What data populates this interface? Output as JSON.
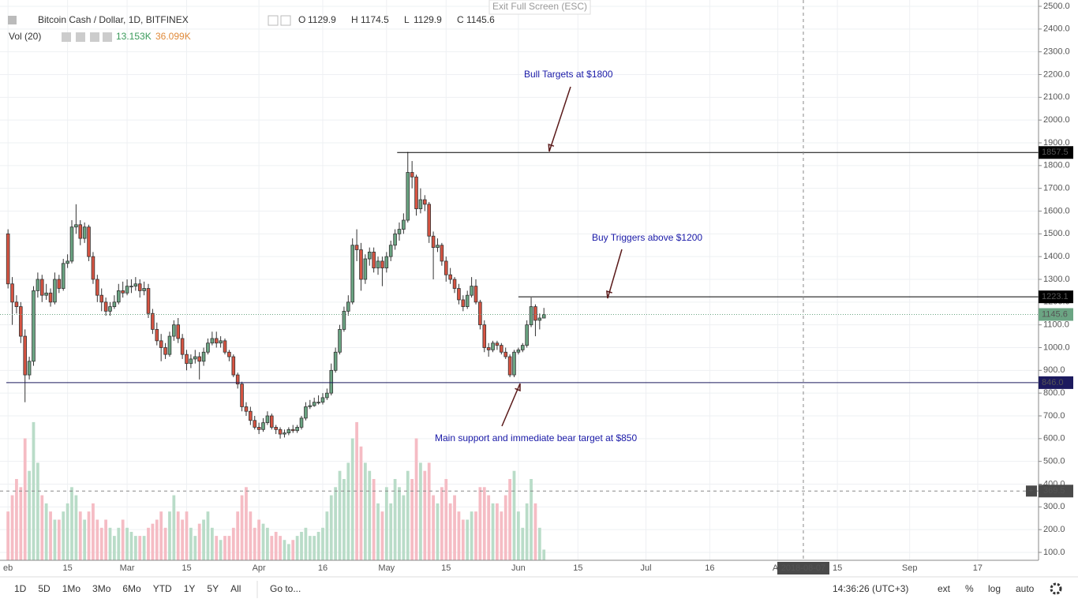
{
  "top_bar": {
    "exit": "Exit Full Screen (ESC)"
  },
  "chart_data": {
    "type": "candlestick",
    "title": "Bitcoin Cash / Dollar, 1D, BITFINEX",
    "ohlc_letters": [
      "O",
      "H",
      "L",
      "C"
    ],
    "volume_title": "Vol (20)",
    "volume_value": "13.153K",
    "volume_ma": "36.099K",
    "ohlc": [
      [
        1500,
        1520,
        1260,
        1280
      ],
      [
        1280,
        1310,
        1100,
        1200
      ],
      [
        1200,
        1230,
        1150,
        1180
      ],
      [
        1180,
        1200,
        1020,
        1050
      ],
      [
        1050,
        1080,
        760,
        880
      ],
      [
        880,
        960,
        860,
        940
      ],
      [
        940,
        1270,
        920,
        1250
      ],
      [
        1250,
        1330,
        1220,
        1300
      ],
      [
        1300,
        1320,
        1200,
        1230
      ],
      [
        1230,
        1280,
        1210,
        1240
      ],
      [
        1240,
        1260,
        1180,
        1200
      ],
      [
        1200,
        1330,
        1190,
        1300
      ],
      [
        1300,
        1320,
        1240,
        1260
      ],
      [
        1260,
        1390,
        1250,
        1370
      ],
      [
        1370,
        1410,
        1350,
        1380
      ],
      [
        1380,
        1560,
        1370,
        1530
      ],
      [
        1530,
        1630,
        1500,
        1540
      ],
      [
        1540,
        1560,
        1450,
        1480
      ],
      [
        1480,
        1550,
        1460,
        1530
      ],
      [
        1530,
        1540,
        1380,
        1400
      ],
      [
        1400,
        1420,
        1280,
        1300
      ],
      [
        1300,
        1320,
        1200,
        1230
      ],
      [
        1230,
        1260,
        1160,
        1200
      ],
      [
        1200,
        1220,
        1140,
        1160
      ],
      [
        1160,
        1200,
        1140,
        1180
      ],
      [
        1180,
        1230,
        1170,
        1200
      ],
      [
        1200,
        1280,
        1190,
        1250
      ],
      [
        1250,
        1290,
        1220,
        1240
      ],
      [
        1240,
        1300,
        1230,
        1270
      ],
      [
        1270,
        1300,
        1240,
        1270
      ],
      [
        1270,
        1310,
        1250,
        1280
      ],
      [
        1280,
        1300,
        1220,
        1250
      ],
      [
        1250,
        1290,
        1230,
        1260
      ],
      [
        1260,
        1280,
        1130,
        1150
      ],
      [
        1150,
        1170,
        1060,
        1080
      ],
      [
        1080,
        1110,
        1010,
        1030
      ],
      [
        1030,
        1060,
        940,
        1000
      ],
      [
        1000,
        1020,
        950,
        970
      ],
      [
        970,
        1070,
        960,
        1050
      ],
      [
        1050,
        1120,
        1030,
        1100
      ],
      [
        1100,
        1130,
        1020,
        1040
      ],
      [
        1040,
        1060,
        950,
        970
      ],
      [
        970,
        990,
        900,
        930
      ],
      [
        930,
        970,
        910,
        950
      ],
      [
        950,
        990,
        930,
        960
      ],
      [
        960,
        980,
        860,
        940
      ],
      [
        940,
        1000,
        920,
        980
      ],
      [
        980,
        1040,
        970,
        1020
      ],
      [
        1020,
        1070,
        1010,
        1040
      ],
      [
        1040,
        1070,
        1000,
        1020
      ],
      [
        1020,
        1050,
        1000,
        1030
      ],
      [
        1030,
        1040,
        970,
        980
      ],
      [
        980,
        990,
        940,
        960
      ],
      [
        960,
        970,
        870,
        880
      ],
      [
        880,
        890,
        820,
        840
      ],
      [
        840,
        850,
        720,
        740
      ],
      [
        740,
        760,
        700,
        720
      ],
      [
        720,
        740,
        660,
        680
      ],
      [
        680,
        700,
        640,
        650
      ],
      [
        650,
        670,
        620,
        640
      ],
      [
        640,
        690,
        630,
        670
      ],
      [
        670,
        720,
        660,
        700
      ],
      [
        700,
        710,
        640,
        650
      ],
      [
        650,
        660,
        620,
        640
      ],
      [
        640,
        650,
        600,
        620
      ],
      [
        620,
        640,
        605,
        625
      ],
      [
        625,
        650,
        615,
        640
      ],
      [
        640,
        660,
        625,
        635
      ],
      [
        635,
        660,
        625,
        650
      ],
      [
        650,
        700,
        640,
        690
      ],
      [
        690,
        760,
        680,
        740
      ],
      [
        740,
        770,
        730,
        745
      ],
      [
        745,
        780,
        740,
        760
      ],
      [
        760,
        790,
        750,
        760
      ],
      [
        760,
        800,
        750,
        780
      ],
      [
        780,
        820,
        770,
        800
      ],
      [
        800,
        930,
        790,
        900
      ],
      [
        900,
        1000,
        890,
        980
      ],
      [
        980,
        1100,
        970,
        1080
      ],
      [
        1080,
        1180,
        1070,
        1160
      ],
      [
        1160,
        1230,
        1140,
        1200
      ],
      [
        1200,
        1480,
        1190,
        1450
      ],
      [
        1450,
        1520,
        1380,
        1430
      ],
      [
        1430,
        1460,
        1250,
        1300
      ],
      [
        1300,
        1410,
        1280,
        1390
      ],
      [
        1390,
        1440,
        1360,
        1420
      ],
      [
        1420,
        1440,
        1330,
        1350
      ],
      [
        1350,
        1400,
        1320,
        1380
      ],
      [
        1380,
        1400,
        1270,
        1350
      ],
      [
        1350,
        1420,
        1330,
        1400
      ],
      [
        1400,
        1470,
        1380,
        1450
      ],
      [
        1450,
        1520,
        1430,
        1500
      ],
      [
        1500,
        1550,
        1470,
        1520
      ],
      [
        1520,
        1590,
        1500,
        1560
      ],
      [
        1560,
        1860,
        1550,
        1770
      ],
      [
        1770,
        1820,
        1700,
        1750
      ],
      [
        1750,
        1760,
        1580,
        1610
      ],
      [
        1610,
        1700,
        1590,
        1650
      ],
      [
        1650,
        1670,
        1600,
        1630
      ],
      [
        1630,
        1640,
        1460,
        1490
      ],
      [
        1490,
        1510,
        1300,
        1440
      ],
      [
        1440,
        1480,
        1420,
        1450
      ],
      [
        1450,
        1460,
        1360,
        1380
      ],
      [
        1380,
        1400,
        1290,
        1320
      ],
      [
        1320,
        1350,
        1280,
        1300
      ],
      [
        1300,
        1310,
        1240,
        1260
      ],
      [
        1260,
        1280,
        1190,
        1210
      ],
      [
        1210,
        1230,
        1160,
        1180
      ],
      [
        1180,
        1250,
        1170,
        1230
      ],
      [
        1230,
        1310,
        1220,
        1270
      ],
      [
        1270,
        1300,
        1190,
        1200
      ],
      [
        1200,
        1210,
        1080,
        1100
      ],
      [
        1100,
        1120,
        980,
        1000
      ],
      [
        1000,
        1020,
        960,
        990
      ],
      [
        990,
        1030,
        980,
        1020
      ],
      [
        1020,
        1030,
        990,
        1010
      ],
      [
        1010,
        1020,
        970,
        980
      ],
      [
        980,
        1000,
        950,
        960
      ],
      [
        960,
        970,
        870,
        880
      ],
      [
        880,
        990,
        870,
        980
      ],
      [
        980,
        1000,
        970,
        990
      ],
      [
        990,
        1020,
        980,
        1010
      ],
      [
        1010,
        1120,
        1000,
        1100
      ],
      [
        1100,
        1220,
        1090,
        1180
      ],
      [
        1180,
        1190,
        1050,
        1120
      ],
      [
        1120,
        1150,
        1080,
        1130
      ],
      [
        1129.9,
        1174.5,
        1129.9,
        1145.6
      ]
    ],
    "volume": [
      60,
      80,
      100,
      90,
      150,
      110,
      170,
      120,
      80,
      70,
      60,
      50,
      50,
      60,
      70,
      90,
      80,
      60,
      50,
      60,
      70,
      50,
      40,
      50,
      40,
      30,
      40,
      50,
      40,
      35,
      30,
      30,
      30,
      40,
      45,
      50,
      60,
      40,
      60,
      80,
      60,
      50,
      60,
      40,
      30,
      45,
      50,
      60,
      40,
      30,
      25,
      30,
      30,
      40,
      60,
      80,
      90,
      60,
      40,
      50,
      45,
      40,
      30,
      35,
      30,
      25,
      20,
      25,
      30,
      35,
      40,
      30,
      30,
      35,
      40,
      60,
      80,
      90,
      110,
      100,
      120,
      150,
      170,
      140,
      120,
      110,
      100,
      70,
      60,
      90,
      70,
      100,
      90,
      80,
      110,
      100,
      150,
      120,
      110,
      120,
      80,
      70,
      90,
      100,
      70,
      80,
      60,
      50,
      50,
      60,
      60,
      90,
      90,
      80,
      70,
      70,
      60,
      80,
      100,
      110,
      60,
      40,
      70,
      100,
      70,
      40,
      13.153
    ],
    "up_color": "#6ba583",
    "down_color": "#d75442",
    "vol_up_color": "#b9dcc8",
    "vol_down_color": "#f5bcc4",
    "xlim": [
      -0.4,
      242.3
    ],
    "ylim": [
      65.3,
      2527.7
    ],
    "vol_lim": [
      0,
      200
    ],
    "xticks": [
      {
        "value": 0,
        "label": "eb"
      },
      {
        "value": 14,
        "label": "15"
      },
      {
        "value": 28,
        "label": "Mar"
      },
      {
        "value": 42,
        "label": "15"
      },
      {
        "value": 59,
        "label": "Apr"
      },
      {
        "value": 74,
        "label": "16"
      },
      {
        "value": 89,
        "label": "May"
      },
      {
        "value": 103,
        "label": "15"
      },
      {
        "value": 120,
        "label": "Jun"
      },
      {
        "value": 134,
        "label": "15"
      },
      {
        "value": 150,
        "label": "Jul"
      },
      {
        "value": 165,
        "label": "16"
      },
      {
        "value": 181,
        "label": "Au"
      },
      {
        "value": 195,
        "label": "15"
      },
      {
        "value": 212,
        "label": "Sep"
      },
      {
        "value": 228,
        "label": "17"
      }
    ],
    "yticks": [
      {
        "value": 100,
        "label": "100.0"
      },
      {
        "value": 200,
        "label": "200.0"
      },
      {
        "value": 300,
        "label": "300.0"
      },
      {
        "value": 400,
        "label": "400.0"
      },
      {
        "value": 500,
        "label": "500.0"
      },
      {
        "value": 600,
        "label": "600.0"
      },
      {
        "value": 700,
        "label": "700.0"
      },
      {
        "value": 800,
        "label": "800.0"
      },
      {
        "value": 900,
        "label": "900.0"
      },
      {
        "value": 1000,
        "label": "1000.0"
      },
      {
        "value": 1100,
        "label": "1100.0"
      },
      {
        "value": 1200,
        "label": "1200.0"
      },
      {
        "value": 1300,
        "label": "1300.0"
      },
      {
        "value": 1400,
        "label": "1400.0"
      },
      {
        "value": 1500,
        "label": "1500.0"
      },
      {
        "value": 1600,
        "label": "1600.0"
      },
      {
        "value": 1700,
        "label": "1700.0"
      },
      {
        "value": 1800,
        "label": "1800.0"
      },
      {
        "value": 1900,
        "label": "1900.0"
      },
      {
        "value": 2000,
        "label": "2000.0"
      },
      {
        "value": 2100,
        "label": "2100.0"
      },
      {
        "value": 2200,
        "label": "2200.0"
      },
      {
        "value": 2300,
        "label": "2300.0"
      },
      {
        "value": 2400,
        "label": "2400.0"
      },
      {
        "value": 2500,
        "label": "2500.0"
      }
    ],
    "grid": true,
    "levels": [
      {
        "value": 1857.5,
        "color": "#000000"
      },
      {
        "value": 1223.1,
        "color": "#000000"
      },
      {
        "value": {
          "value": 846,
          "label": "846.0"
        },
        "color": "#1c1a5e"
      }
    ],
    "crosshair": {
      "x": 187,
      "x_label": "2018-08-07",
      "y": 369.5
    },
    "annotations": [
      "Bull Targets at $1800",
      "Buy Triggers above $1200",
      "Main support and immediate bear target at $850"
    ]
  },
  "toolbar": {
    "ranges": [
      "1D",
      "5D",
      "1Mo",
      "3Mo",
      "6Mo",
      "YTD",
      "1Y",
      "5Y",
      "All"
    ],
    "goto": "Go to...",
    "time": "14:36:26 (UTC+3)",
    "options": [
      "ext",
      "%",
      "log",
      "auto"
    ]
  }
}
